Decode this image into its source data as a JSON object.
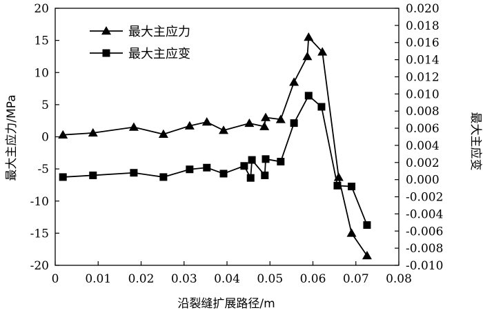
{
  "chart_data": {
    "type": "line",
    "xlabel": "沿裂缝扩展路径/m",
    "ylabel_left": "最大主应力/MPa",
    "ylabel_right": "最大主应变",
    "xlim": [
      0,
      0.08
    ],
    "x_ticks": [
      0,
      0.01,
      0.02,
      0.03,
      0.04,
      0.05,
      0.06,
      0.07,
      0.08
    ],
    "x_tick_labels": [
      "0",
      "0.01",
      "0.02",
      "0.03",
      "0.04",
      "0.05",
      "0.06",
      "0.07",
      "0.08"
    ],
    "ylim_left": [
      -20,
      20
    ],
    "y_left_ticks": [
      -20,
      -15,
      -10,
      -5,
      0,
      5,
      10,
      15,
      20
    ],
    "y_left_tick_labels": [
      "-20",
      "-15",
      "-10",
      "-5",
      "0",
      "5",
      "10",
      "15",
      "20"
    ],
    "ylim_right": [
      -0.01,
      0.02
    ],
    "y_right_ticks": [
      -0.01,
      -0.008,
      -0.006,
      -0.004,
      -0.002,
      0,
      0.002,
      0.004,
      0.006,
      0.008,
      0.01,
      0.012,
      0.014,
      0.016,
      0.018,
      0.02
    ],
    "y_right_tick_labels": [
      "-0.010",
      "-0.008",
      "-0.006",
      "-0.004",
      "-0.002",
      "0.000",
      "0.002",
      "0.004",
      "0.006",
      "0.008",
      "0.010",
      "0.012",
      "0.014",
      "0.016",
      "0.018",
      "0.020"
    ],
    "grid": false,
    "legend_position": "top-left",
    "series": [
      {
        "name": "最大主应力",
        "marker": "triangle",
        "axis": "left",
        "color": "#000000",
        "x": [
          0.0018,
          0.0088,
          0.0183,
          0.0252,
          0.0313,
          0.0353,
          0.0392,
          0.0452,
          0.0487,
          0.049,
          0.0525,
          0.0556,
          0.0587,
          0.059,
          0.0622,
          0.066,
          0.069,
          0.0726
        ],
        "y": [
          0.3,
          0.6,
          1.5,
          0.4,
          1.7,
          2.3,
          1.0,
          2.1,
          1.6,
          3.0,
          2.7,
          8.5,
          12.5,
          15.5,
          13.2,
          -6.3,
          -15.0,
          -18.5
        ]
      },
      {
        "name": "最大主应变",
        "marker": "square",
        "axis": "right",
        "color": "#000000",
        "x": [
          0.0018,
          0.0088,
          0.0183,
          0.0252,
          0.0313,
          0.0353,
          0.0392,
          0.044,
          0.0455,
          0.0458,
          0.0488,
          0.049,
          0.0525,
          0.0556,
          0.059,
          0.062,
          0.0657,
          0.069,
          0.0726
        ],
        "y": [
          0.0003,
          0.0005,
          0.0008,
          0.0003,
          0.0012,
          0.0014,
          0.0007,
          0.0016,
          0.0002,
          0.0023,
          0.0005,
          0.0024,
          0.0021,
          0.0066,
          0.0098,
          0.0085,
          -0.0007,
          -0.0008,
          -0.0053
        ]
      }
    ]
  }
}
